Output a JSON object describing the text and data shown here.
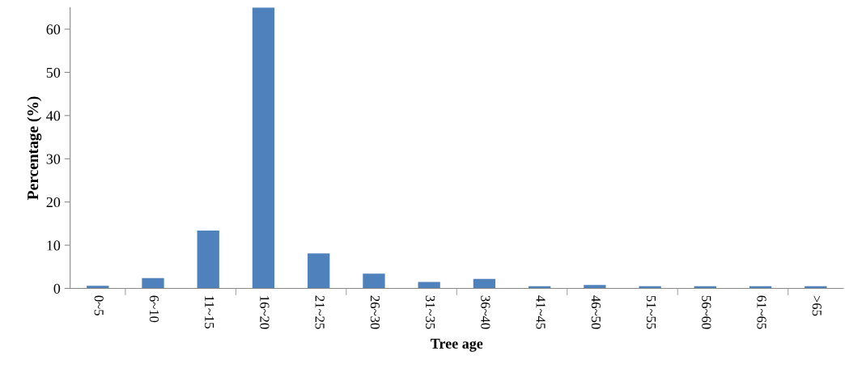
{
  "chart_data": {
    "type": "bar",
    "xlabel": "Tree age",
    "ylabel": "Percentage (%)",
    "categories": [
      "0~5",
      "6~10",
      "11~15",
      "16~20",
      "21~25",
      "26~30",
      "31~35",
      "36~40",
      "41~45",
      "46~50",
      "51~55",
      "56~60",
      "61~65",
      ">65"
    ],
    "values": [
      0.6,
      2.4,
      13.4,
      65,
      8.1,
      3.4,
      1.5,
      2.2,
      0.5,
      0.8,
      0.5,
      0.5,
      0.5,
      0.5
    ],
    "color": "#4f81bd",
    "ylim": [
      0,
      65
    ],
    "yticks": [
      0,
      10,
      20,
      30,
      40,
      50,
      60
    ],
    "grid": false
  }
}
